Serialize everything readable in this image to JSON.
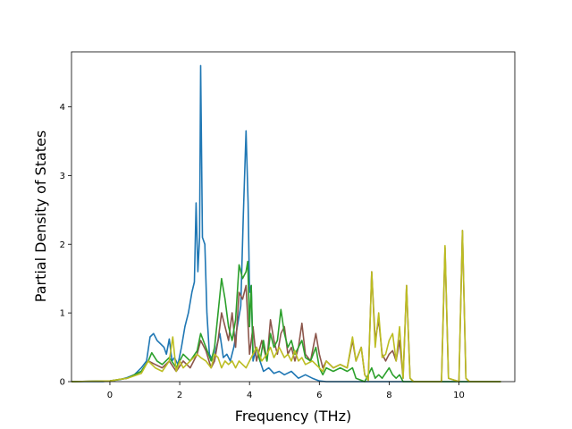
{
  "chart_data": {
    "type": "line",
    "title": "",
    "xlabel": "Frequency (THz)",
    "ylabel": "Partial Density of States",
    "xlim": [
      -1.1,
      11.6
    ],
    "ylim": [
      0,
      4.8
    ],
    "xticks": [
      0,
      2,
      4,
      6,
      8,
      10
    ],
    "yticks": [
      0,
      1,
      2,
      3,
      4
    ],
    "grid": false,
    "legend": "none",
    "series": [
      {
        "color": "#1f77b4",
        "points": [
          [
            -1.1,
            0
          ],
          [
            -0.2,
            0
          ],
          [
            0,
            0.01
          ],
          [
            0.3,
            0.03
          ],
          [
            0.5,
            0.06
          ],
          [
            0.7,
            0.1
          ],
          [
            0.9,
            0.2
          ],
          [
            1.05,
            0.3
          ],
          [
            1.15,
            0.65
          ],
          [
            1.25,
            0.7
          ],
          [
            1.35,
            0.6
          ],
          [
            1.45,
            0.55
          ],
          [
            1.55,
            0.5
          ],
          [
            1.62,
            0.4
          ],
          [
            1.7,
            0.62
          ],
          [
            1.78,
            0.3
          ],
          [
            1.85,
            0.35
          ],
          [
            1.95,
            0.25
          ],
          [
            2.05,
            0.5
          ],
          [
            2.15,
            0.8
          ],
          [
            2.25,
            1.0
          ],
          [
            2.35,
            1.3
          ],
          [
            2.42,
            1.45
          ],
          [
            2.47,
            2.6
          ],
          [
            2.52,
            1.6
          ],
          [
            2.57,
            2.1
          ],
          [
            2.6,
            4.6
          ],
          [
            2.65,
            2.1
          ],
          [
            2.72,
            2.0
          ],
          [
            2.78,
            1.0
          ],
          [
            2.85,
            0.4
          ],
          [
            2.95,
            0.3
          ],
          [
            3.05,
            0.5
          ],
          [
            3.15,
            0.7
          ],
          [
            3.25,
            0.35
          ],
          [
            3.35,
            0.4
          ],
          [
            3.45,
            0.3
          ],
          [
            3.55,
            0.5
          ],
          [
            3.65,
            0.8
          ],
          [
            3.75,
            1.1
          ],
          [
            3.82,
            2.4
          ],
          [
            3.9,
            3.65
          ],
          [
            3.96,
            2.6
          ],
          [
            4.0,
            1.3
          ],
          [
            4.05,
            1.4
          ],
          [
            4.1,
            0.3
          ],
          [
            4.2,
            0.5
          ],
          [
            4.3,
            0.3
          ],
          [
            4.4,
            0.15
          ],
          [
            4.55,
            0.2
          ],
          [
            4.7,
            0.12
          ],
          [
            4.85,
            0.15
          ],
          [
            5.0,
            0.1
          ],
          [
            5.2,
            0.15
          ],
          [
            5.4,
            0.05
          ],
          [
            5.6,
            0.1
          ],
          [
            5.8,
            0.05
          ],
          [
            6.0,
            0.01
          ],
          [
            6.2,
            0
          ],
          [
            11.2,
            0
          ]
        ]
      },
      {
        "color": "#8c564b",
        "points": [
          [
            -1.1,
            0
          ],
          [
            0,
            0.01
          ],
          [
            0.5,
            0.05
          ],
          [
            0.9,
            0.15
          ],
          [
            1.1,
            0.3
          ],
          [
            1.3,
            0.25
          ],
          [
            1.5,
            0.2
          ],
          [
            1.7,
            0.3
          ],
          [
            1.9,
            0.15
          ],
          [
            2.1,
            0.3
          ],
          [
            2.3,
            0.2
          ],
          [
            2.5,
            0.4
          ],
          [
            2.6,
            0.6
          ],
          [
            2.75,
            0.45
          ],
          [
            2.9,
            0.2
          ],
          [
            3.0,
            0.3
          ],
          [
            3.1,
            0.6
          ],
          [
            3.2,
            1.0
          ],
          [
            3.3,
            0.8
          ],
          [
            3.4,
            0.6
          ],
          [
            3.5,
            1.0
          ],
          [
            3.6,
            0.5
          ],
          [
            3.7,
            1.3
          ],
          [
            3.8,
            1.2
          ],
          [
            3.9,
            1.4
          ],
          [
            4.0,
            0.4
          ],
          [
            4.1,
            0.8
          ],
          [
            4.2,
            0.3
          ],
          [
            4.35,
            0.6
          ],
          [
            4.5,
            0.3
          ],
          [
            4.6,
            0.9
          ],
          [
            4.7,
            0.6
          ],
          [
            4.8,
            0.4
          ],
          [
            4.9,
            0.7
          ],
          [
            5.0,
            0.8
          ],
          [
            5.1,
            0.4
          ],
          [
            5.2,
            0.5
          ],
          [
            5.3,
            0.3
          ],
          [
            5.4,
            0.5
          ],
          [
            5.5,
            0.85
          ],
          [
            5.6,
            0.4
          ],
          [
            5.75,
            0.3
          ],
          [
            5.9,
            0.7
          ],
          [
            6.0,
            0.4
          ],
          [
            6.1,
            0.2
          ],
          [
            6.2,
            0.3
          ],
          [
            6.4,
            0.2
          ],
          [
            6.6,
            0.25
          ],
          [
            6.8,
            0.2
          ],
          [
            6.95,
            0.6
          ],
          [
            7.05,
            0.3
          ],
          [
            7.2,
            0.5
          ],
          [
            7.3,
            0.1
          ],
          [
            7.4,
            0.02
          ],
          [
            7.5,
            1.6
          ],
          [
            7.6,
            0.6
          ],
          [
            7.7,
            0.9
          ],
          [
            7.8,
            0.4
          ],
          [
            7.9,
            0.3
          ],
          [
            8.0,
            0.4
          ],
          [
            8.1,
            0.45
          ],
          [
            8.2,
            0.3
          ],
          [
            8.3,
            0.6
          ],
          [
            8.4,
            0.05
          ],
          [
            8.5,
            1.4
          ],
          [
            8.6,
            0.05
          ],
          [
            8.7,
            0
          ],
          [
            9.5,
            0
          ],
          [
            9.6,
            1.95
          ],
          [
            9.7,
            0.05
          ],
          [
            10.0,
            0
          ],
          [
            10.1,
            2.2
          ],
          [
            10.2,
            0.05
          ],
          [
            10.3,
            0
          ],
          [
            11.2,
            0
          ]
        ]
      },
      {
        "color": "#2ca02c",
        "points": [
          [
            -1.1,
            0
          ],
          [
            0,
            0.01
          ],
          [
            0.5,
            0.05
          ],
          [
            0.9,
            0.15
          ],
          [
            1.1,
            0.3
          ],
          [
            1.2,
            0.42
          ],
          [
            1.35,
            0.3
          ],
          [
            1.5,
            0.25
          ],
          [
            1.7,
            0.35
          ],
          [
            1.9,
            0.2
          ],
          [
            2.1,
            0.4
          ],
          [
            2.3,
            0.3
          ],
          [
            2.5,
            0.45
          ],
          [
            2.6,
            0.7
          ],
          [
            2.75,
            0.5
          ],
          [
            2.9,
            0.3
          ],
          [
            3.0,
            0.5
          ],
          [
            3.1,
            1.0
          ],
          [
            3.2,
            1.5
          ],
          [
            3.3,
            1.2
          ],
          [
            3.4,
            0.8
          ],
          [
            3.5,
            0.6
          ],
          [
            3.6,
            0.9
          ],
          [
            3.7,
            1.7
          ],
          [
            3.8,
            1.5
          ],
          [
            3.9,
            1.6
          ],
          [
            3.95,
            1.75
          ],
          [
            4.0,
            0.8
          ],
          [
            4.05,
            1.4
          ],
          [
            4.1,
            0.4
          ],
          [
            4.2,
            0.5
          ],
          [
            4.3,
            0.3
          ],
          [
            4.4,
            0.6
          ],
          [
            4.5,
            0.3
          ],
          [
            4.6,
            0.7
          ],
          [
            4.7,
            0.5
          ],
          [
            4.8,
            0.6
          ],
          [
            4.9,
            1.05
          ],
          [
            5.0,
            0.7
          ],
          [
            5.1,
            0.5
          ],
          [
            5.2,
            0.6
          ],
          [
            5.3,
            0.4
          ],
          [
            5.4,
            0.5
          ],
          [
            5.5,
            0.6
          ],
          [
            5.6,
            0.35
          ],
          [
            5.75,
            0.3
          ],
          [
            5.9,
            0.5
          ],
          [
            6.0,
            0.2
          ],
          [
            6.1,
            0.1
          ],
          [
            6.2,
            0.2
          ],
          [
            6.4,
            0.15
          ],
          [
            6.6,
            0.2
          ],
          [
            6.8,
            0.15
          ],
          [
            6.95,
            0.2
          ],
          [
            7.05,
            0.05
          ],
          [
            7.2,
            0.02
          ],
          [
            7.3,
            0
          ],
          [
            7.5,
            0.2
          ],
          [
            7.6,
            0.05
          ],
          [
            7.7,
            0.1
          ],
          [
            7.8,
            0.05
          ],
          [
            8.0,
            0.2
          ],
          [
            8.1,
            0.1
          ],
          [
            8.2,
            0.05
          ],
          [
            8.3,
            0.1
          ],
          [
            8.4,
            0
          ],
          [
            11.2,
            0
          ]
        ]
      },
      {
        "color": "#bcbd22",
        "points": [
          [
            -1.1,
            0
          ],
          [
            0,
            0.01
          ],
          [
            0.5,
            0.05
          ],
          [
            0.9,
            0.12
          ],
          [
            1.1,
            0.3
          ],
          [
            1.3,
            0.2
          ],
          [
            1.5,
            0.15
          ],
          [
            1.7,
            0.3
          ],
          [
            1.8,
            0.65
          ],
          [
            1.9,
            0.15
          ],
          [
            2.0,
            0.3
          ],
          [
            2.1,
            0.2
          ],
          [
            2.3,
            0.3
          ],
          [
            2.5,
            0.4
          ],
          [
            2.6,
            0.35
          ],
          [
            2.75,
            0.3
          ],
          [
            2.9,
            0.2
          ],
          [
            3.0,
            0.4
          ],
          [
            3.1,
            0.35
          ],
          [
            3.2,
            0.2
          ],
          [
            3.3,
            0.3
          ],
          [
            3.4,
            0.25
          ],
          [
            3.5,
            0.3
          ],
          [
            3.6,
            0.2
          ],
          [
            3.7,
            0.3
          ],
          [
            3.8,
            0.25
          ],
          [
            3.9,
            0.2
          ],
          [
            4.0,
            0.3
          ],
          [
            4.1,
            0.4
          ],
          [
            4.2,
            0.5
          ],
          [
            4.35,
            0.3
          ],
          [
            4.5,
            0.4
          ],
          [
            4.6,
            0.5
          ],
          [
            4.7,
            0.35
          ],
          [
            4.85,
            0.5
          ],
          [
            5.0,
            0.35
          ],
          [
            5.1,
            0.4
          ],
          [
            5.2,
            0.3
          ],
          [
            5.3,
            0.45
          ],
          [
            5.4,
            0.3
          ],
          [
            5.5,
            0.35
          ],
          [
            5.6,
            0.25
          ],
          [
            5.8,
            0.3
          ],
          [
            6.0,
            0.2
          ],
          [
            6.1,
            0.15
          ],
          [
            6.2,
            0.3
          ],
          [
            6.4,
            0.2
          ],
          [
            6.6,
            0.25
          ],
          [
            6.8,
            0.2
          ],
          [
            6.95,
            0.65
          ],
          [
            7.05,
            0.3
          ],
          [
            7.2,
            0.5
          ],
          [
            7.3,
            0.1
          ],
          [
            7.4,
            0.02
          ],
          [
            7.5,
            1.6
          ],
          [
            7.6,
            0.5
          ],
          [
            7.7,
            1.0
          ],
          [
            7.8,
            0.35
          ],
          [
            7.9,
            0.4
          ],
          [
            8.0,
            0.6
          ],
          [
            8.1,
            0.7
          ],
          [
            8.2,
            0.3
          ],
          [
            8.3,
            0.8
          ],
          [
            8.4,
            0.05
          ],
          [
            8.5,
            1.4
          ],
          [
            8.6,
            0.05
          ],
          [
            8.7,
            0
          ],
          [
            9.5,
            0
          ],
          [
            9.6,
            1.98
          ],
          [
            9.7,
            0.05
          ],
          [
            10.0,
            0
          ],
          [
            10.1,
            2.2
          ],
          [
            10.2,
            0.05
          ],
          [
            10.3,
            0
          ],
          [
            11.2,
            0
          ]
        ]
      }
    ]
  }
}
